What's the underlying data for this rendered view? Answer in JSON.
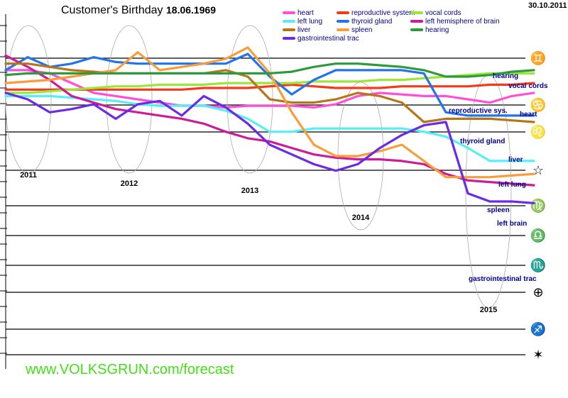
{
  "header": {
    "title": "Customer's Birthday",
    "birthdate": "18.06.1969",
    "report_date": "30.10.2011"
  },
  "footer": {
    "url": "www.VOLKSGRUN.com/forecast"
  },
  "chart_data": {
    "type": "line",
    "x": [
      2010.9,
      2011.1,
      2011.3,
      2011.5,
      2011.7,
      2011.9,
      2012.1,
      2012.3,
      2012.5,
      2012.7,
      2012.9,
      2013.1,
      2013.3,
      2013.5,
      2013.7,
      2013.9,
      2014.1,
      2014.3,
      2014.5,
      2014.7,
      2014.9,
      2015.1,
      2015.3,
      2015.5,
      2015.7
    ],
    "year_labels": [
      "2011",
      "2012",
      "2013",
      "2014",
      "2015"
    ],
    "row_glyphs": [
      "♊",
      "♋",
      "♌",
      "☆",
      "♍",
      "♎",
      "♏",
      "⊕",
      "♐",
      "✶"
    ],
    "series": [
      {
        "name": "heart",
        "color": "#ff4fd8",
        "end_label": "heart",
        "values": [
          0.88,
          0.88,
          0.86,
          0.8,
          0.74,
          0.72,
          0.7,
          0.68,
          0.66,
          0.66,
          0.65,
          0.66,
          0.66,
          0.66,
          0.65,
          0.67,
          0.72,
          0.74,
          0.73,
          0.72,
          0.72,
          0.7,
          0.68,
          0.72,
          0.74
        ]
      },
      {
        "name": "reproductive system",
        "color": "#f53a1a",
        "end_label": "reproductive sys.",
        "values": [
          0.76,
          0.76,
          0.76,
          0.76,
          0.76,
          0.76,
          0.76,
          0.76,
          0.76,
          0.77,
          0.77,
          0.77,
          0.78,
          0.79,
          0.78,
          0.77,
          0.77,
          0.77,
          0.78,
          0.78,
          0.78,
          0.78,
          0.79,
          0.79,
          0.8
        ]
      },
      {
        "name": "vocal cords",
        "color": "#9ce63a",
        "end_label": "vocal cords",
        "values": [
          0.74,
          0.74,
          0.75,
          0.76,
          0.77,
          0.78,
          0.78,
          0.79,
          0.79,
          0.79,
          0.8,
          0.8,
          0.8,
          0.8,
          0.81,
          0.81,
          0.81,
          0.82,
          0.82,
          0.83,
          0.84,
          0.85,
          0.86,
          0.86,
          0.86
        ]
      },
      {
        "name": "left lung",
        "color": "#55f0f5",
        "end_label": "left lung",
        "values": [
          0.72,
          0.72,
          0.72,
          0.71,
          0.7,
          0.69,
          0.67,
          0.66,
          0.66,
          0.66,
          0.63,
          0.58,
          0.5,
          0.5,
          0.52,
          0.52,
          0.52,
          0.52,
          0.52,
          0.5,
          0.47,
          0.4,
          0.32,
          0.32,
          0.32
        ]
      },
      {
        "name": "thyroid gland",
        "color": "#2373ec",
        "end_label": "thyroid gland",
        "values": [
          0.88,
          0.96,
          0.9,
          0.92,
          0.96,
          0.93,
          0.92,
          0.92,
          0.92,
          0.92,
          0.92,
          0.98,
          0.84,
          0.73,
          0.82,
          0.88,
          0.88,
          0.88,
          0.88,
          0.86,
          0.62,
          0.6,
          0.6,
          0.6,
          0.6
        ]
      },
      {
        "name": "left hemisphere of brain",
        "color": "#cc1c9a",
        "end_label": "left brain",
        "values": [
          0.97,
          0.9,
          0.82,
          0.72,
          0.68,
          0.64,
          0.62,
          0.6,
          0.58,
          0.55,
          0.5,
          0.46,
          0.44,
          0.4,
          0.36,
          0.34,
          0.33,
          0.33,
          0.32,
          0.3,
          0.24,
          0.2,
          0.19,
          0.18,
          0.17
        ]
      },
      {
        "name": "liver",
        "color": "#b5761a",
        "end_label": "liver",
        "values": [
          0.92,
          0.92,
          0.9,
          0.88,
          0.87,
          0.86,
          0.86,
          0.86,
          0.86,
          0.86,
          0.88,
          0.84,
          0.7,
          0.68,
          0.68,
          0.7,
          0.74,
          0.72,
          0.68,
          0.56,
          0.58,
          0.58,
          0.58,
          0.57,
          0.56
        ]
      },
      {
        "name": "spleen",
        "color": "#f89d3a",
        "end_label": "spleen",
        "values": [
          0.8,
          0.81,
          0.82,
          0.84,
          0.86,
          0.88,
          0.99,
          0.88,
          0.9,
          0.92,
          0.95,
          1.02,
          0.86,
          0.62,
          0.42,
          0.35,
          0.35,
          0.38,
          0.42,
          0.32,
          0.22,
          0.22,
          0.22,
          0.23,
          0.24
        ]
      },
      {
        "name": "hearing",
        "color": "#2e9a3e",
        "end_label": "hearing",
        "values": [
          0.85,
          0.86,
          0.86,
          0.86,
          0.86,
          0.86,
          0.86,
          0.86,
          0.86,
          0.86,
          0.86,
          0.86,
          0.86,
          0.87,
          0.9,
          0.92,
          0.92,
          0.91,
          0.9,
          0.88,
          0.84,
          0.84,
          0.85,
          0.87,
          0.88
        ]
      },
      {
        "name": "gastrointestinal trac",
        "color": "#6a2ae6",
        "end_label": "gastrointestinal trac",
        "values": [
          0.74,
          0.7,
          0.62,
          0.64,
          0.67,
          0.58,
          0.67,
          0.69,
          0.6,
          0.72,
          0.65,
          0.55,
          0.42,
          0.36,
          0.3,
          0.26,
          0.3,
          0.4,
          0.48,
          0.54,
          0.56,
          0.12,
          0.07,
          0.07,
          0.06
        ]
      }
    ],
    "ylim": [
      0,
      1.05
    ],
    "grid": true,
    "legend_position": "top"
  }
}
